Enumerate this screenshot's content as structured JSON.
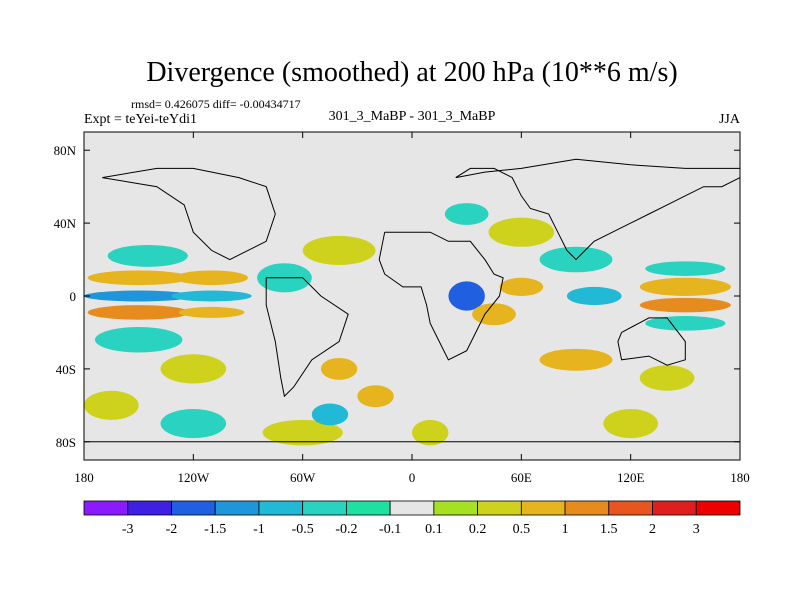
{
  "chart_data": {
    "type": "heatmap",
    "title": "Divergence (smoothed) at 200 hPa (10**6 m/s)",
    "stats_text": "rmsd= 0.426075 diff= -0.00434717",
    "left_label": "Expt = teYei-teYdi1",
    "center_label": "301_3_MaBP - 301_3_MaBP",
    "right_label": "JJA",
    "xlim": [
      -180,
      180
    ],
    "ylim": [
      -90,
      90
    ],
    "x_ticks": [
      {
        "value": -180,
        "label": "180"
      },
      {
        "value": -120,
        "label": "120W"
      },
      {
        "value": -60,
        "label": "60W"
      },
      {
        "value": 0,
        "label": "0"
      },
      {
        "value": 60,
        "label": "60E"
      },
      {
        "value": 120,
        "label": "120E"
      },
      {
        "value": 180,
        "label": "180"
      }
    ],
    "y_ticks": [
      {
        "value": 80,
        "label": "80N"
      },
      {
        "value": 40,
        "label": "40N"
      },
      {
        "value": 0,
        "label": "0"
      },
      {
        "value": -40,
        "label": "40S"
      },
      {
        "value": -80,
        "label": "80S"
      }
    ],
    "colorbar": {
      "levels": [
        "-3",
        "-2",
        "-1.5",
        "-1",
        "-0.5",
        "-0.2",
        "-0.1",
        "0.1",
        "0.2",
        "0.5",
        "1",
        "1.5",
        "2",
        "3"
      ],
      "colors": [
        "#8c1aff",
        "#3f1fe0",
        "#1f5fe0",
        "#1f96d9",
        "#22b9d6",
        "#2ad2c0",
        "#1ee0a0",
        "#e6e6e6",
        "#a6e022",
        "#cfd21c",
        "#e6b41e",
        "#e68c1e",
        "#e6561e",
        "#e01e1e",
        "#ee0000"
      ]
    },
    "regions": [
      {
        "lon": -150,
        "lat": 10,
        "rx": 28,
        "ry": 4,
        "value": 0.8
      },
      {
        "lon": -110,
        "lat": 10,
        "rx": 20,
        "ry": 4,
        "value": 0.7
      },
      {
        "lon": -150,
        "lat": 0,
        "rx": 30,
        "ry": 3,
        "value": -1.2
      },
      {
        "lon": -110,
        "lat": 0,
        "rx": 22,
        "ry": 3,
        "value": -0.8
      },
      {
        "lon": -150,
        "lat": -9,
        "rx": 28,
        "ry": 4,
        "value": 1.2
      },
      {
        "lon": -110,
        "lat": -9,
        "rx": 18,
        "ry": 3,
        "value": 0.8
      },
      {
        "lon": -145,
        "lat": 22,
        "rx": 22,
        "ry": 6,
        "value": -0.4
      },
      {
        "lon": -150,
        "lat": -24,
        "rx": 24,
        "ry": 7,
        "value": -0.4
      },
      {
        "lon": -120,
        "lat": -40,
        "rx": 18,
        "ry": 8,
        "value": 0.4
      },
      {
        "lon": -165,
        "lat": -60,
        "rx": 15,
        "ry": 8,
        "value": 0.3
      },
      {
        "lon": -120,
        "lat": -70,
        "rx": 18,
        "ry": 8,
        "value": -0.3
      },
      {
        "lon": -60,
        "lat": -75,
        "rx": 22,
        "ry": 7,
        "value": 0.3
      },
      {
        "lon": -45,
        "lat": -65,
        "rx": 10,
        "ry": 6,
        "value": -0.8
      },
      {
        "lon": -40,
        "lat": -40,
        "rx": 10,
        "ry": 6,
        "value": 0.9
      },
      {
        "lon": -20,
        "lat": -55,
        "rx": 10,
        "ry": 6,
        "value": 0.5
      },
      {
        "lon": -70,
        "lat": 10,
        "rx": 15,
        "ry": 8,
        "value": -0.3
      },
      {
        "lon": -40,
        "lat": 25,
        "rx": 20,
        "ry": 8,
        "value": 0.3
      },
      {
        "lon": 30,
        "lat": 0,
        "rx": 10,
        "ry": 8,
        "value": -1.8
      },
      {
        "lon": 45,
        "lat": -10,
        "rx": 12,
        "ry": 6,
        "value": 0.6
      },
      {
        "lon": 60,
        "lat": 5,
        "rx": 12,
        "ry": 5,
        "value": 0.9
      },
      {
        "lon": 90,
        "lat": 20,
        "rx": 20,
        "ry": 7,
        "value": -0.4
      },
      {
        "lon": 100,
        "lat": 0,
        "rx": 15,
        "ry": 5,
        "value": -0.6
      },
      {
        "lon": 150,
        "lat": 5,
        "rx": 25,
        "ry": 5,
        "value": 0.8
      },
      {
        "lon": 150,
        "lat": -5,
        "rx": 25,
        "ry": 4,
        "value": 1.0
      },
      {
        "lon": 150,
        "lat": -15,
        "rx": 22,
        "ry": 4,
        "value": -0.5
      },
      {
        "lon": 150,
        "lat": 15,
        "rx": 22,
        "ry": 4,
        "value": -0.4
      },
      {
        "lon": 90,
        "lat": -35,
        "rx": 20,
        "ry": 6,
        "value": 0.5
      },
      {
        "lon": 140,
        "lat": -45,
        "rx": 15,
        "ry": 7,
        "value": 0.4
      },
      {
        "lon": 120,
        "lat": -70,
        "rx": 15,
        "ry": 8,
        "value": 0.3
      },
      {
        "lon": 10,
        "lat": -75,
        "rx": 10,
        "ry": 7,
        "value": 0.3
      },
      {
        "lon": 60,
        "lat": 35,
        "rx": 18,
        "ry": 8,
        "value": 0.3
      },
      {
        "lon": 30,
        "lat": 45,
        "rx": 12,
        "ry": 6,
        "value": -0.3
      }
    ],
    "coastlines": [
      {
        "name": "eurasia-africa-outline",
        "points": [
          [
            24,
            65
          ],
          [
            32,
            70
          ],
          [
            45,
            70
          ],
          [
            55,
            65
          ],
          [
            60,
            55
          ],
          [
            65,
            48
          ],
          [
            75,
            45
          ],
          [
            80,
            35
          ],
          [
            85,
            25
          ],
          [
            90,
            20
          ],
          [
            95,
            25
          ],
          [
            100,
            30
          ],
          [
            110,
            35
          ],
          [
            120,
            40
          ],
          [
            130,
            45
          ],
          [
            140,
            50
          ],
          [
            150,
            55
          ],
          [
            160,
            60
          ],
          [
            170,
            60
          ],
          [
            180,
            65
          ],
          [
            180,
            70
          ],
          [
            150,
            70
          ],
          [
            120,
            72
          ],
          [
            90,
            75
          ],
          [
            60,
            70
          ],
          [
            40,
            68
          ],
          [
            24,
            65
          ]
        ]
      },
      {
        "name": "africa-outline",
        "points": [
          [
            -15,
            35
          ],
          [
            0,
            35
          ],
          [
            10,
            35
          ],
          [
            20,
            30
          ],
          [
            32,
            30
          ],
          [
            40,
            20
          ],
          [
            45,
            12
          ],
          [
            50,
            10
          ],
          [
            48,
            0
          ],
          [
            40,
            -10
          ],
          [
            35,
            -20
          ],
          [
            30,
            -30
          ],
          [
            20,
            -35
          ],
          [
            15,
            -25
          ],
          [
            10,
            -15
          ],
          [
            8,
            -5
          ],
          [
            5,
            5
          ],
          [
            -5,
            5
          ],
          [
            -15,
            12
          ],
          [
            -18,
            20
          ],
          [
            -15,
            35
          ]
        ]
      },
      {
        "name": "north-america-outline",
        "points": [
          [
            -170,
            65
          ],
          [
            -140,
            70
          ],
          [
            -120,
            70
          ],
          [
            -95,
            65
          ],
          [
            -80,
            60
          ],
          [
            -75,
            45
          ],
          [
            -80,
            30
          ],
          [
            -90,
            25
          ],
          [
            -100,
            20
          ],
          [
            -110,
            25
          ],
          [
            -120,
            35
          ],
          [
            -125,
            50
          ],
          [
            -140,
            60
          ],
          [
            -170,
            65
          ]
        ]
      },
      {
        "name": "south-america-outline",
        "points": [
          [
            -80,
            10
          ],
          [
            -60,
            10
          ],
          [
            -50,
            0
          ],
          [
            -35,
            -10
          ],
          [
            -40,
            -25
          ],
          [
            -55,
            -35
          ],
          [
            -65,
            -50
          ],
          [
            -70,
            -55
          ],
          [
            -72,
            -45
          ],
          [
            -75,
            -25
          ],
          [
            -80,
            -5
          ],
          [
            -80,
            10
          ]
        ]
      },
      {
        "name": "australia-outline",
        "points": [
          [
            115,
            -20
          ],
          [
            130,
            -12
          ],
          [
            140,
            -12
          ],
          [
            150,
            -25
          ],
          [
            150,
            -35
          ],
          [
            140,
            -38
          ],
          [
            130,
            -33
          ],
          [
            115,
            -35
          ],
          [
            113,
            -25
          ],
          [
            115,
            -20
          ]
        ]
      },
      {
        "name": "antarctica-outline",
        "points": [
          [
            -180,
            -80
          ],
          [
            180,
            -80
          ]
        ]
      }
    ]
  }
}
